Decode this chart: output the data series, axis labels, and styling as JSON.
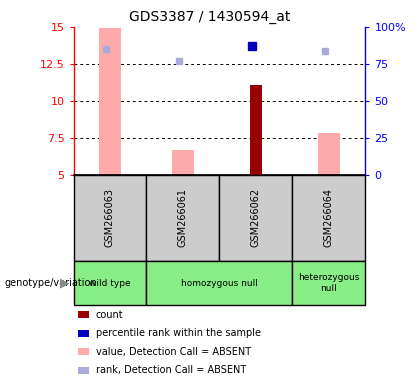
{
  "title": "GDS3387 / 1430594_at",
  "samples": [
    "GSM266063",
    "GSM266061",
    "GSM266062",
    "GSM266064"
  ],
  "ylim_left": [
    5,
    15
  ],
  "ylim_right": [
    0,
    100
  ],
  "yticks_left": [
    5,
    7.5,
    10,
    12.5,
    15
  ],
  "ytick_labels_left": [
    "5",
    "7.5",
    "10",
    "12.5",
    "15"
  ],
  "yticks_right": [
    0,
    25,
    50,
    75,
    100
  ],
  "ytick_labels_right": [
    "0",
    "25",
    "50",
    "75",
    "100%"
  ],
  "bars_absent_value": [
    14.9,
    6.7,
    0,
    7.8
  ],
  "bars_count": [
    0,
    0,
    11.1,
    0
  ],
  "markers_rank_absent": [
    13.5,
    12.7,
    0,
    13.4
  ],
  "markers_rank_present": [
    0,
    0,
    13.7,
    0
  ],
  "bar_width": 0.3,
  "color_bar_absent": "#ffaaaa",
  "color_bar_count": "#990000",
  "color_marker_rank_absent": "#aaaadd",
  "color_marker_rank_present": "#0000bb",
  "bg_sample_box": "#cccccc",
  "bg_genotype_box": "#88ee88",
  "legend_items": [
    {
      "color": "#990000",
      "label": "count"
    },
    {
      "color": "#0000bb",
      "label": "percentile rank within the sample"
    },
    {
      "color": "#ffaaaa",
      "label": "value, Detection Call = ABSENT"
    },
    {
      "color": "#aaaadd",
      "label": "rank, Detection Call = ABSENT"
    }
  ],
  "genotype_label": "genotype/variation",
  "groups": [
    {
      "label": "wild type",
      "start": 0,
      "end": 1
    },
    {
      "label": "homozygous null",
      "start": 1,
      "end": 3
    },
    {
      "label": "heterozygous\nnull",
      "start": 3,
      "end": 4
    }
  ]
}
